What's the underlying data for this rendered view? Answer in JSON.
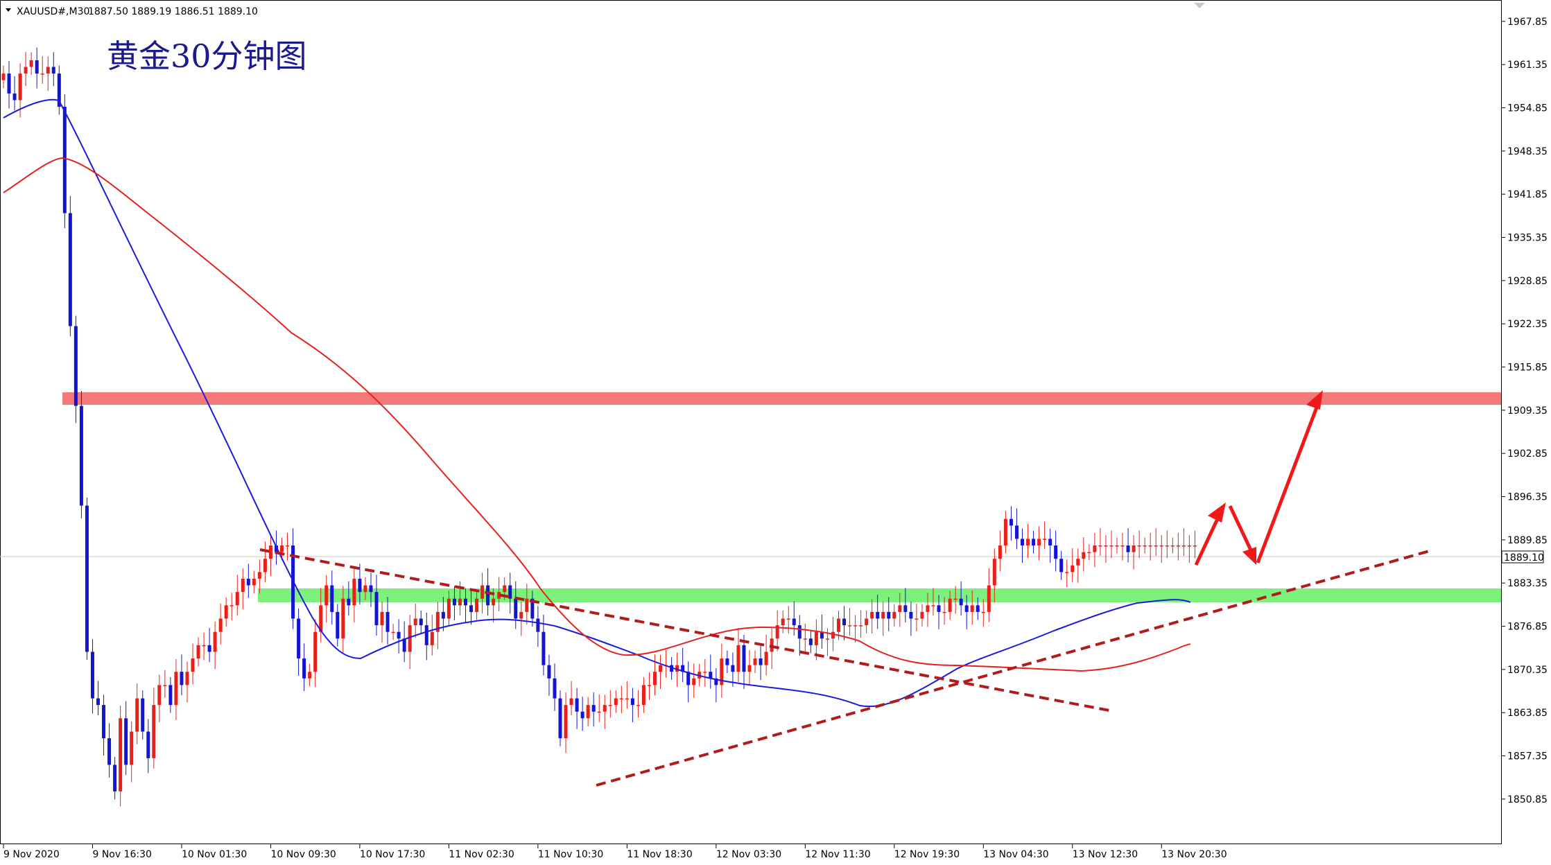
{
  "header": {
    "symbol": "XAUUSD#,M30",
    "ohlc": "1887.50 1889.19 1886.51 1889.10"
  },
  "annotation_title": "黄金30分钟图",
  "current_price_label": "1889.10",
  "colors": {
    "bull": "#e8201a",
    "bear": "#1414d2",
    "ma_fast": "#1a1ae0",
    "ma_slow": "#e82020",
    "resistance_zone": "#f47a7a",
    "support_zone": "#7cf27c",
    "trendline": "#b01c1c",
    "arrow": "#f01818"
  },
  "chart_data": {
    "type": "candlestick",
    "title": "黄金30分钟图",
    "y_axis": {
      "min": 1847.5,
      "max": 1969.5,
      "ticks": [
        "1967.85",
        "1961.35",
        "1954.85",
        "1948.35",
        "1941.85",
        "1935.35",
        "1928.85",
        "1922.35",
        "1915.85",
        "1909.35",
        "1902.85",
        "1896.35",
        "1889.85",
        "1883.35",
        "1876.85",
        "1870.35",
        "1863.85",
        "1857.35",
        "1850.85"
      ]
    },
    "x_axis": {
      "labels": [
        "9 Nov 2020",
        "9 Nov 16:30",
        "10 Nov 01:30",
        "10 Nov 09:30",
        "10 Nov 17:30",
        "11 Nov 02:30",
        "11 Nov 10:30",
        "11 Nov 18:30",
        "12 Nov 03:30",
        "12 Nov 11:30",
        "12 Nov 19:30",
        "13 Nov 04:30",
        "13 Nov 12:30",
        "13 Nov 20:30"
      ],
      "label_bar_index": [
        0,
        16,
        32,
        48,
        64,
        80,
        96,
        112,
        128,
        144,
        160,
        176,
        192,
        208
      ]
    },
    "total_bars": 214,
    "closes": [
      1960,
      1957,
      1956,
      1960,
      1961,
      1962,
      1960,
      1960,
      1961,
      1960,
      1955,
      1939,
      1922,
      1910,
      1895,
      1873,
      1866,
      1865,
      1860,
      1856,
      1852,
      1863,
      1856,
      1861,
      1866,
      1861,
      1857,
      1865,
      1868,
      1868,
      1865,
      1870,
      1868,
      1870,
      1872,
      1874,
      1874,
      1873,
      1876,
      1878,
      1880,
      1880,
      1882,
      1884,
      1883,
      1884,
      1885,
      1887,
      1889,
      1888,
      1889,
      1889,
      1878,
      1872,
      1869,
      1870,
      1876,
      1880,
      1883,
      1879,
      1875,
      1881,
      1880,
      1884,
      1882,
      1883,
      1882,
      1877,
      1879,
      1876,
      1876,
      1875,
      1873,
      1877,
      1878,
      1877,
      1874,
      1876,
      1879,
      1878,
      1881,
      1880,
      1881,
      1880,
      1879,
      1881,
      1883,
      1880,
      1881,
      1882,
      1883,
      1881,
      1878,
      1879,
      1881,
      1878,
      1876,
      1871,
      1869,
      1866,
      1860,
      1865,
      1866,
      1864,
      1863,
      1865,
      1864,
      1864,
      1865,
      1865,
      1866,
      1866,
      1866,
      1865,
      1865,
      1868,
      1868,
      1870,
      1871,
      1871,
      1870,
      1871,
      1870,
      1868,
      1869,
      1870,
      1870,
      1869,
      1868,
      1872,
      1871,
      1870,
      1874,
      1870,
      1871,
      1872,
      1871,
      1873,
      1875,
      1877,
      1878,
      1878,
      1877,
      1875,
      1875,
      1874,
      1876,
      1875,
      1875,
      1876,
      1878,
      1877,
      1877,
      1877,
      1877,
      1878,
      1879,
      1878,
      1879,
      1878,
      1879,
      1880,
      1879,
      1878,
      1878,
      1879,
      1880,
      1880,
      1879,
      1879,
      1881,
      1881,
      1880,
      1879,
      1880,
      1879,
      1879,
      1883,
      1887,
      1889,
      1893,
      1892,
      1890,
      1889,
      1890,
      1889,
      1890,
      1890,
      1889,
      1887,
      1885,
      1885,
      1886,
      1887,
      1888,
      1888,
      1889,
      1889,
      1889,
      1889,
      1889,
      1889,
      1888,
      1889,
      1889,
      1889,
      1889,
      1889,
      1889,
      1889,
      1889,
      1889,
      1889,
      1889,
      1889
    ]
  }
}
